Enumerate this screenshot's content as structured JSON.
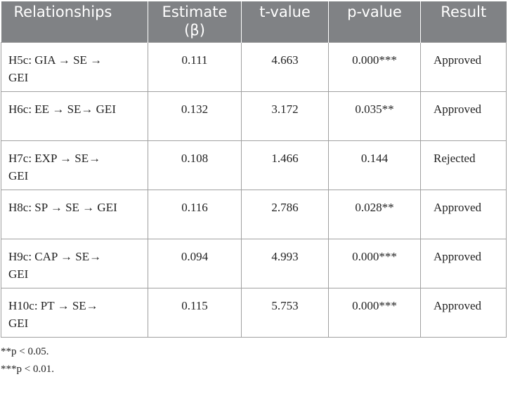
{
  "table": {
    "headers": [
      "Relationships",
      "Estimate (β)",
      "t-value",
      "p-value",
      "Result"
    ],
    "rows": [
      [
        "H5c: GIA →  SE → GEI",
        "0.111",
        "4.663",
        "0.000***",
        "Approved"
      ],
      [
        "H6c: EE →  SE→ GEI",
        "0.132",
        "3.172",
        "0.035**",
        "Approved"
      ],
      [
        "H7c: EXP → SE→  GEI",
        "0.108",
        "1.466",
        "0.144",
        "Rejected"
      ],
      [
        "H8c: SP →  SE → GEI",
        "0.116",
        "2.786",
        "0.028**",
        "Approved"
      ],
      [
        "H9c: CAP → SE→  GEI",
        "0.094",
        "4.993",
        "0.000***",
        "Approved"
      ],
      [
        "H10c: PT →  SE→ GEI",
        "0.115",
        "5.753",
        "0.000***",
        "Approved"
      ]
    ]
  },
  "footnotes": [
    "**p < 0.05.",
    "***p < 0.01."
  ]
}
